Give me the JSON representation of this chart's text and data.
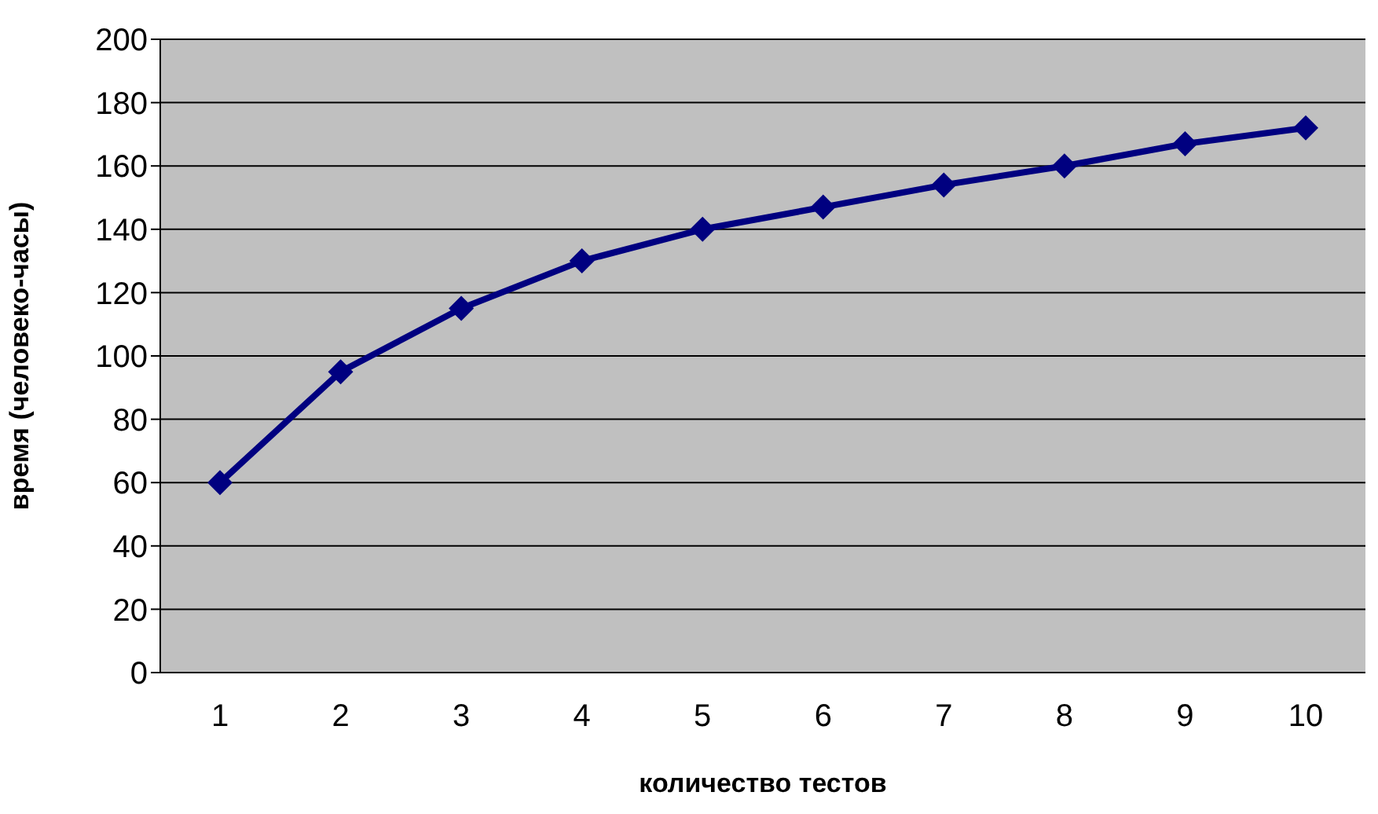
{
  "chart_data": {
    "type": "line",
    "xlabel": "количество тестов",
    "ylabel": "время (человеко-часы)",
    "categories": [
      "1",
      "2",
      "3",
      "4",
      "5",
      "6",
      "7",
      "8",
      "9",
      "10"
    ],
    "series": [
      {
        "color": "#000080",
        "values": [
          60,
          95,
          115,
          130,
          140,
          147,
          154,
          160,
          167,
          172
        ]
      }
    ],
    "ylim": [
      0,
      200
    ],
    "yticks": [
      0,
      20,
      40,
      60,
      80,
      100,
      120,
      140,
      160,
      180,
      200
    ],
    "grid": "y",
    "marker": "diamond",
    "legend": false
  }
}
